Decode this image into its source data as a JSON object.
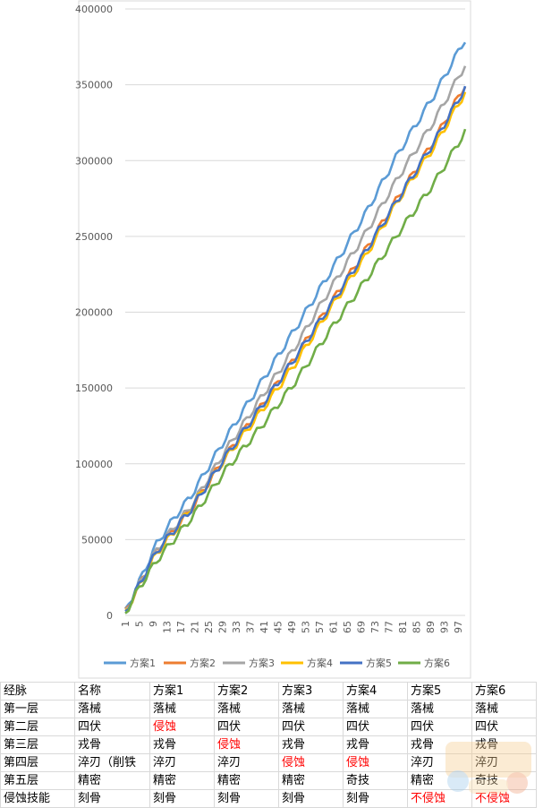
{
  "chart_data": {
    "type": "line",
    "title": "",
    "xlabel": "",
    "ylabel": "",
    "ylim": [
      0,
      400000
    ],
    "y_ticks": [
      "0",
      "50000",
      "100000",
      "150000",
      "200000",
      "250000",
      "300000",
      "350000",
      "400000"
    ],
    "x_range": [
      1,
      99
    ],
    "x_ticks": [
      "1",
      "5",
      "9",
      "13",
      "17",
      "21",
      "25",
      "29",
      "33",
      "37",
      "41",
      "45",
      "49",
      "53",
      "57",
      "61",
      "65",
      "69",
      "73",
      "77",
      "81",
      "85",
      "89",
      "93",
      "97"
    ],
    "grid": "horizontal",
    "legend_position": "bottom",
    "series": [
      {
        "name": "方案1",
        "color": "#5b9bd5",
        "x": [
          1,
          5,
          10,
          15,
          20,
          30,
          40,
          50,
          60,
          70,
          80,
          90,
          99
        ],
        "values": [
          2000,
          22000,
          47000,
          64000,
          79000,
          117000,
          153000,
          189000,
          226000,
          264000,
          306000,
          343000,
          380000
        ]
      },
      {
        "name": "方案2",
        "color": "#ed7d31",
        "x": [
          1,
          5,
          10,
          15,
          20,
          30,
          40,
          50,
          60,
          70,
          80,
          90,
          99
        ],
        "values": [
          2000,
          20000,
          42000,
          56000,
          70000,
          105000,
          137000,
          170000,
          205000,
          240000,
          277000,
          313000,
          350000
        ]
      },
      {
        "name": "方案3",
        "color": "#a5a5a5",
        "x": [
          1,
          5,
          10,
          15,
          20,
          30,
          40,
          50,
          60,
          70,
          80,
          90,
          99
        ],
        "values": [
          2000,
          20000,
          43000,
          58000,
          72000,
          109000,
          143000,
          177000,
          215000,
          251000,
          290000,
          326000,
          363000
        ]
      },
      {
        "name": "方案4",
        "color": "#ffc000",
        "x": [
          1,
          5,
          10,
          15,
          20,
          30,
          40,
          50,
          60,
          70,
          80,
          90,
          99
        ],
        "values": [
          2000,
          19000,
          41000,
          55000,
          71000,
          104000,
          134000,
          166000,
          202000,
          236000,
          275000,
          309000,
          345000
        ]
      },
      {
        "name": "方案5",
        "color": "#4472c4",
        "x": [
          1,
          5,
          10,
          15,
          20,
          30,
          40,
          50,
          60,
          70,
          80,
          90,
          99
        ],
        "values": [
          2000,
          20000,
          42000,
          56000,
          70000,
          105000,
          137000,
          170000,
          204000,
          239000,
          276000,
          312000,
          348000
        ]
      },
      {
        "name": "方案6",
        "color": "#70ad47",
        "x": [
          1,
          5,
          10,
          15,
          20,
          30,
          40,
          50,
          60,
          70,
          80,
          90,
          99
        ],
        "values": [
          1500,
          18000,
          36000,
          50000,
          64000,
          96000,
          124000,
          154000,
          188000,
          220000,
          253000,
          285000,
          319000
        ]
      }
    ]
  },
  "table": {
    "headers": [
      "经脉",
      "名称",
      "方案1",
      "方案2",
      "方案3",
      "方案4",
      "方案5",
      "方案6"
    ],
    "rows": [
      {
        "cells": [
          "第一层",
          "落械",
          "落械",
          "落械",
          "落械",
          "落械",
          "落械",
          "落械"
        ],
        "red": []
      },
      {
        "cells": [
          "第二层",
          "四伏",
          "侵蚀",
          "四伏",
          "四伏",
          "四伏",
          "四伏",
          "四伏"
        ],
        "red": [
          2
        ]
      },
      {
        "cells": [
          "第三层",
          "戎骨",
          "戎骨",
          "侵蚀",
          "戎骨",
          "戎骨",
          "戎骨",
          "戎骨"
        ],
        "red": [
          3
        ]
      },
      {
        "cells": [
          "第四层",
          "淬刃（削铁",
          "淬刃",
          "淬刃",
          "侵蚀",
          "侵蚀",
          "淬刃",
          "淬刃"
        ],
        "red": [
          4,
          5
        ]
      },
      {
        "cells": [
          "第五层",
          "精密",
          "精密",
          "精密",
          "精密",
          "奇技",
          "精密",
          "奇技"
        ],
        "red": []
      },
      {
        "cells": [
          "侵蚀技能",
          "刻骨",
          "刻骨",
          "刻骨",
          "刻骨",
          "刻骨",
          "不侵蚀",
          "不侵蚀"
        ],
        "red": [
          6,
          7
        ]
      }
    ]
  }
}
